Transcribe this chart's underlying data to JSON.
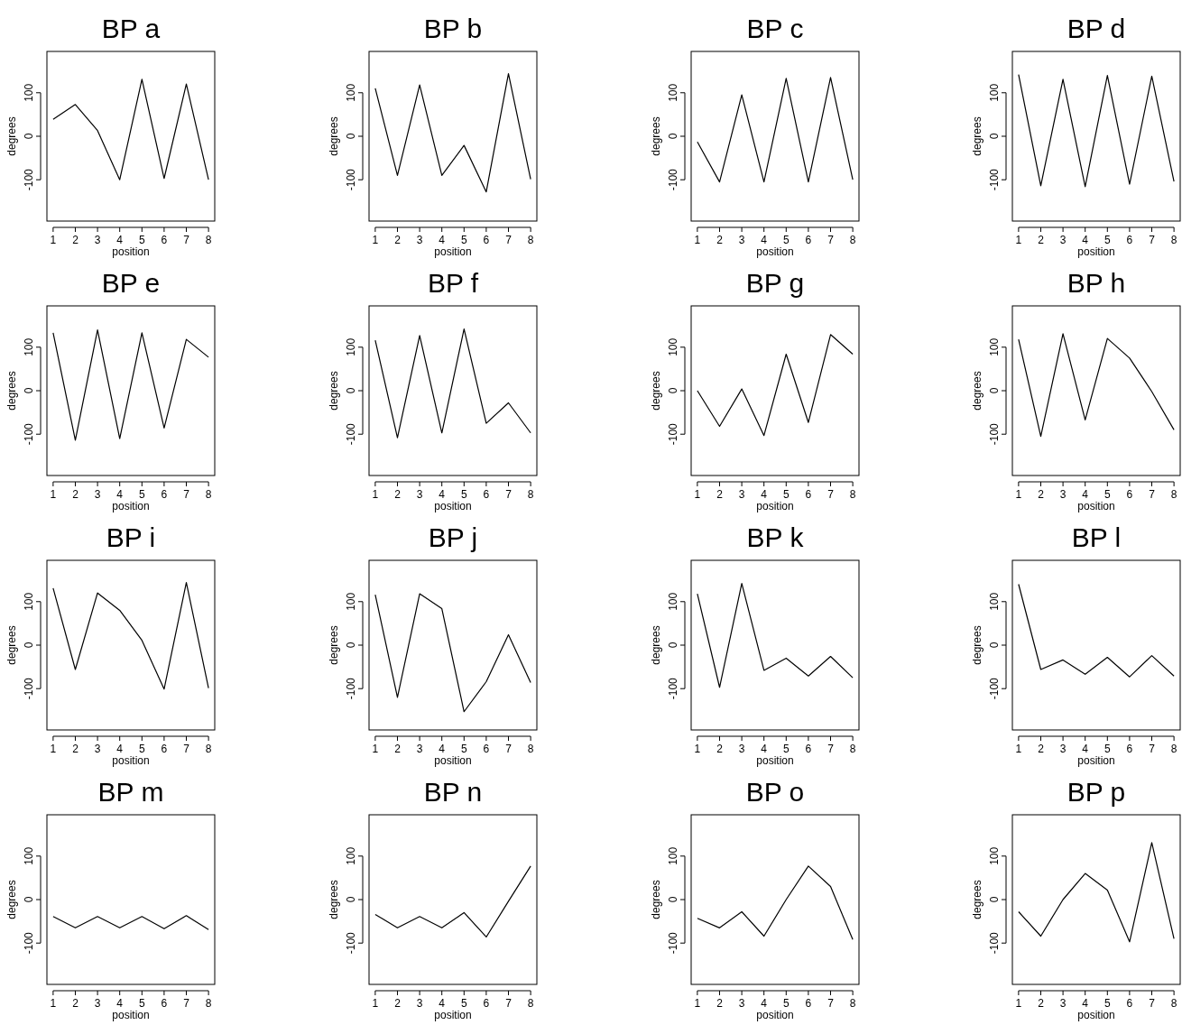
{
  "chart_data": [
    {
      "type": "line",
      "title": "BP a",
      "xlabel": "position",
      "ylabel": "degrees",
      "x": [
        1,
        2,
        3,
        4,
        5,
        6,
        7,
        8
      ],
      "values": [
        39,
        73,
        13,
        -100,
        131,
        -97,
        120,
        -100
      ],
      "xlim": [
        0.72,
        8.28
      ],
      "ylim": [
        -195,
        195
      ],
      "xticks": [
        1,
        2,
        3,
        4,
        5,
        6,
        7,
        8
      ],
      "yticks": [
        -100,
        0,
        100
      ]
    },
    {
      "type": "line",
      "title": "BP b",
      "xlabel": "position",
      "ylabel": "degrees",
      "x": [
        1,
        2,
        3,
        4,
        5,
        6,
        7,
        8
      ],
      "values": [
        110,
        -90,
        118,
        -90,
        -21,
        -128,
        144,
        -99
      ],
      "xlim": [
        0.72,
        8.28
      ],
      "ylim": [
        -195,
        195
      ],
      "xticks": [
        1,
        2,
        3,
        4,
        5,
        6,
        7,
        8
      ],
      "yticks": [
        -100,
        0,
        100
      ]
    },
    {
      "type": "line",
      "title": "BP c",
      "xlabel": "position",
      "ylabel": "degrees",
      "x": [
        1,
        2,
        3,
        4,
        5,
        6,
        7,
        8
      ],
      "values": [
        -13,
        -105,
        95,
        -105,
        133,
        -105,
        135,
        -100
      ],
      "xlim": [
        0.72,
        8.28
      ],
      "ylim": [
        -195,
        195
      ],
      "xticks": [
        1,
        2,
        3,
        4,
        5,
        6,
        7,
        8
      ],
      "yticks": [
        -100,
        0,
        100
      ]
    },
    {
      "type": "line",
      "title": "BP d",
      "xlabel": "position",
      "ylabel": "degrees",
      "x": [
        1,
        2,
        3,
        4,
        5,
        6,
        7,
        8
      ],
      "values": [
        142,
        -114,
        131,
        -116,
        140,
        -110,
        138,
        -104
      ],
      "xlim": [
        0.72,
        8.28
      ],
      "ylim": [
        -195,
        195
      ],
      "xticks": [
        1,
        2,
        3,
        4,
        5,
        6,
        7,
        8
      ],
      "yticks": [
        -100,
        0,
        100
      ]
    },
    {
      "type": "line",
      "title": "BP e",
      "xlabel": "position",
      "ylabel": "degrees",
      "x": [
        1,
        2,
        3,
        4,
        5,
        6,
        7,
        8
      ],
      "values": [
        133,
        -114,
        140,
        -110,
        133,
        -86,
        118,
        77
      ],
      "xlim": [
        0.72,
        8.28
      ],
      "ylim": [
        -195,
        195
      ],
      "xticks": [
        1,
        2,
        3,
        4,
        5,
        6,
        7,
        8
      ],
      "yticks": [
        -100,
        0,
        100
      ]
    },
    {
      "type": "line",
      "title": "BP f",
      "xlabel": "position",
      "ylabel": "degrees",
      "x": [
        1,
        2,
        3,
        4,
        5,
        6,
        7,
        8
      ],
      "values": [
        116,
        -108,
        127,
        -97,
        142,
        -75,
        -28,
        -97
      ],
      "xlim": [
        0.72,
        8.28
      ],
      "ylim": [
        -195,
        195
      ],
      "xticks": [
        1,
        2,
        3,
        4,
        5,
        6,
        7,
        8
      ],
      "yticks": [
        -100,
        0,
        100
      ]
    },
    {
      "type": "line",
      "title": "BP g",
      "xlabel": "position",
      "ylabel": "degrees",
      "x": [
        1,
        2,
        3,
        4,
        5,
        6,
        7,
        8
      ],
      "values": [
        0,
        -82,
        4,
        -103,
        84,
        -73,
        129,
        84
      ],
      "xlim": [
        0.72,
        8.28
      ],
      "ylim": [
        -195,
        195
      ],
      "xticks": [
        1,
        2,
        3,
        4,
        5,
        6,
        7,
        8
      ],
      "yticks": [
        -100,
        0,
        100
      ]
    },
    {
      "type": "line",
      "title": "BP h",
      "xlabel": "position",
      "ylabel": "degrees",
      "x": [
        1,
        2,
        3,
        4,
        5,
        6,
        7,
        8
      ],
      "values": [
        118,
        -105,
        131,
        -67,
        120,
        75,
        -2,
        -90
      ],
      "xlim": [
        0.72,
        8.28
      ],
      "ylim": [
        -195,
        195
      ],
      "xticks": [
        1,
        2,
        3,
        4,
        5,
        6,
        7,
        8
      ],
      "yticks": [
        -100,
        0,
        100
      ]
    },
    {
      "type": "line",
      "title": "BP i",
      "xlabel": "position",
      "ylabel": "degrees",
      "x": [
        1,
        2,
        3,
        4,
        5,
        6,
        7,
        8
      ],
      "values": [
        131,
        -56,
        120,
        80,
        11,
        -101,
        144,
        -99
      ],
      "xlim": [
        0.72,
        8.28
      ],
      "ylim": [
        -195,
        195
      ],
      "xticks": [
        1,
        2,
        3,
        4,
        5,
        6,
        7,
        8
      ],
      "yticks": [
        -100,
        0,
        100
      ]
    },
    {
      "type": "line",
      "title": "BP j",
      "xlabel": "position",
      "ylabel": "degrees",
      "x": [
        1,
        2,
        3,
        4,
        5,
        6,
        7,
        8
      ],
      "values": [
        116,
        -120,
        118,
        84,
        -153,
        -84,
        24,
        -86
      ],
      "xlim": [
        0.72,
        8.28
      ],
      "ylim": [
        -195,
        195
      ],
      "xticks": [
        1,
        2,
        3,
        4,
        5,
        6,
        7,
        8
      ],
      "yticks": [
        -100,
        0,
        100
      ]
    },
    {
      "type": "line",
      "title": "BP k",
      "xlabel": "position",
      "ylabel": "degrees",
      "x": [
        1,
        2,
        3,
        4,
        5,
        6,
        7,
        8
      ],
      "values": [
        118,
        -97,
        142,
        -58,
        -30,
        -71,
        -26,
        -75
      ],
      "xlim": [
        0.72,
        8.28
      ],
      "ylim": [
        -195,
        195
      ],
      "xticks": [
        1,
        2,
        3,
        4,
        5,
        6,
        7,
        8
      ],
      "yticks": [
        -100,
        0,
        100
      ]
    },
    {
      "type": "line",
      "title": "BP l",
      "xlabel": "position",
      "ylabel": "degrees",
      "x": [
        1,
        2,
        3,
        4,
        5,
        6,
        7,
        8
      ],
      "values": [
        140,
        -56,
        -34,
        -67,
        -28,
        -73,
        -24,
        -71
      ],
      "xlim": [
        0.72,
        8.28
      ],
      "ylim": [
        -195,
        195
      ],
      "xticks": [
        1,
        2,
        3,
        4,
        5,
        6,
        7,
        8
      ],
      "yticks": [
        -100,
        0,
        100
      ]
    },
    {
      "type": "line",
      "title": "BP m",
      "xlabel": "position",
      "ylabel": "degrees",
      "x": [
        1,
        2,
        3,
        4,
        5,
        6,
        7,
        8
      ],
      "values": [
        -39,
        -65,
        -39,
        -65,
        -39,
        -67,
        -37,
        -69
      ],
      "xlim": [
        0.72,
        8.28
      ],
      "ylim": [
        -195,
        195
      ],
      "xticks": [
        1,
        2,
        3,
        4,
        5,
        6,
        7,
        8
      ],
      "yticks": [
        -100,
        0,
        100
      ]
    },
    {
      "type": "line",
      "title": "BP n",
      "xlabel": "position",
      "ylabel": "degrees",
      "x": [
        1,
        2,
        3,
        4,
        5,
        6,
        7,
        8
      ],
      "values": [
        -34,
        -65,
        -39,
        -65,
        -30,
        -86,
        -4,
        77
      ],
      "xlim": [
        0.72,
        8.28
      ],
      "ylim": [
        -195,
        195
      ],
      "xticks": [
        1,
        2,
        3,
        4,
        5,
        6,
        7,
        8
      ],
      "yticks": [
        -100,
        0,
        100
      ]
    },
    {
      "type": "line",
      "title": "BP o",
      "xlabel": "position",
      "ylabel": "degrees",
      "x": [
        1,
        2,
        3,
        4,
        5,
        6,
        7,
        8
      ],
      "values": [
        -43,
        -65,
        -28,
        -84,
        0,
        77,
        30,
        -92
      ],
      "xlim": [
        0.72,
        8.28
      ],
      "ylim": [
        -195,
        195
      ],
      "xticks": [
        1,
        2,
        3,
        4,
        5,
        6,
        7,
        8
      ],
      "yticks": [
        -100,
        0,
        100
      ]
    },
    {
      "type": "line",
      "title": "BP p",
      "xlabel": "position",
      "ylabel": "degrees",
      "x": [
        1,
        2,
        3,
        4,
        5,
        6,
        7,
        8
      ],
      "values": [
        -28,
        -84,
        0,
        60,
        22,
        -97,
        131,
        -90
      ],
      "xlim": [
        0.72,
        8.28
      ],
      "ylim": [
        -195,
        195
      ],
      "xticks": [
        1,
        2,
        3,
        4,
        5,
        6,
        7,
        8
      ],
      "yticks": [
        -100,
        0,
        100
      ]
    }
  ]
}
